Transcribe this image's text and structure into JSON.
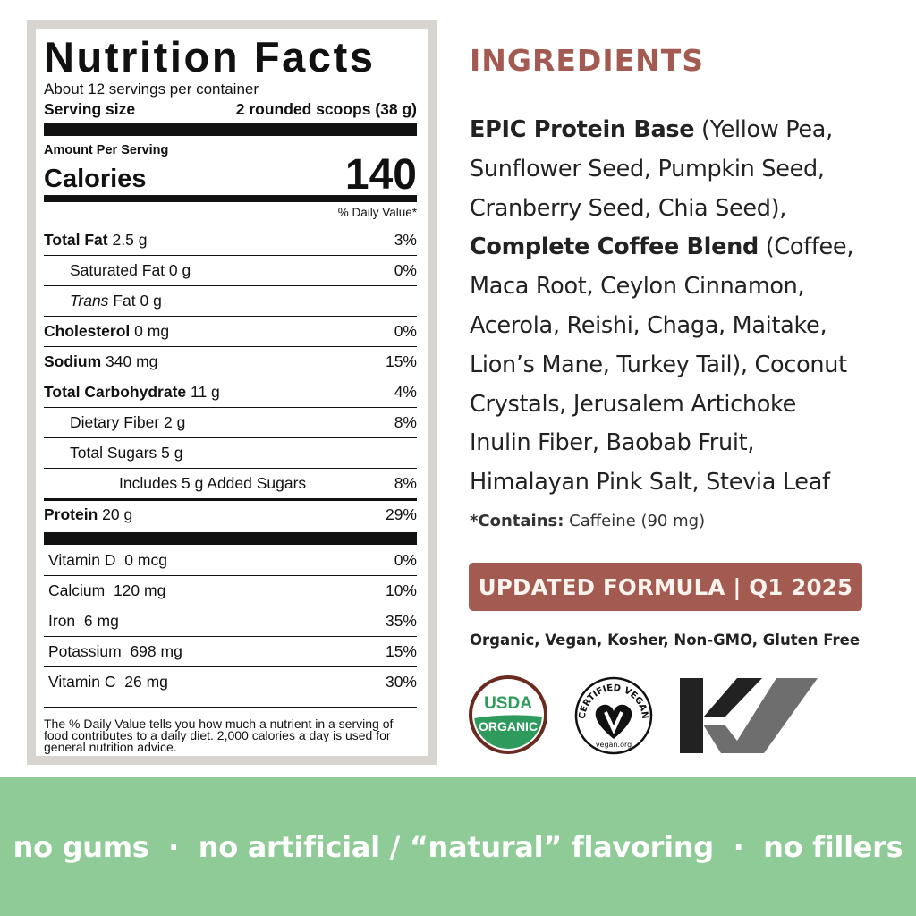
{
  "nutrition": {
    "title": "Nutrition Facts",
    "servings": "About 12 servings per container",
    "serving_size_label": "Serving size",
    "serving_size_value": "2 rounded scoops (38 g)",
    "amount_per_serving": "Amount Per Serving",
    "calories_label": "Calories",
    "calories_value": "140",
    "daily_value_header": "% Daily Value*",
    "rows": [
      {
        "name": "Total Fat",
        "amount": "2.5 g",
        "dv": "3%",
        "bold": true,
        "indent": 0
      },
      {
        "name": "Saturated Fat",
        "amount": "0 g",
        "dv": "0%",
        "bold": false,
        "indent": 1
      },
      {
        "name": "Trans",
        "name2": "Fat",
        "amount": "0 g",
        "dv": "",
        "bold": false,
        "indent": 1
      },
      {
        "name": "Cholesterol",
        "amount": "0 mg",
        "dv": "0%",
        "bold": true,
        "indent": 0
      },
      {
        "name": "Sodium",
        "amount": "340 mg",
        "dv": "15%",
        "bold": true,
        "indent": 0
      },
      {
        "name": "Total Carbohydrate",
        "amount": "11 g",
        "dv": "4%",
        "bold": true,
        "indent": 0
      },
      {
        "name": "Dietary Fiber",
        "amount": "2 g",
        "dv": "8%",
        "bold": false,
        "indent": 1
      },
      {
        "name": "Total Sugars",
        "amount": "5 g",
        "dv": "",
        "bold": false,
        "indent": 1
      },
      {
        "name": "Includes 5 g Added Sugars",
        "amount": "",
        "dv": "8%",
        "bold": false,
        "indent": 2
      },
      {
        "name": "Protein",
        "amount": "20 g",
        "dv": "29%",
        "bold": true,
        "indent": 0
      }
    ],
    "micros": [
      {
        "name": "Vitamin D",
        "amount": "0 mcg",
        "dv": "0%"
      },
      {
        "name": "Calcium",
        "amount": "120 mg",
        "dv": "10%"
      },
      {
        "name": "Iron",
        "amount": "6 mg",
        "dv": "35%"
      },
      {
        "name": "Potassium",
        "amount": "698 mg",
        "dv": "15%"
      },
      {
        "name": "Vitamin C",
        "amount": "26 mg",
        "dv": "30%"
      }
    ],
    "footnote": "The % Daily Value tells you how much a nutrient in a serving of food contributes to a daily diet. 2,000 calories a day is used for general nutrition advice."
  },
  "ingredients": {
    "heading": "INGREDIENTS",
    "lines": [
      [
        {
          "b": true,
          "t": "EPIC Protein Base"
        },
        {
          "b": false,
          "t": " (Yellow Pea,"
        }
      ],
      [
        {
          "b": false,
          "t": "Sunflower Seed, Pumpkin Seed,"
        }
      ],
      [
        {
          "b": false,
          "t": "Cranberry Seed, Chia Seed),"
        }
      ],
      [
        {
          "b": true,
          "t": "Complete Coffee Blend"
        },
        {
          "b": false,
          "t": " (Coffee,"
        }
      ],
      [
        {
          "b": false,
          "t": "Maca Root, Ceylon Cinnamon,"
        }
      ],
      [
        {
          "b": false,
          "t": "Acerola, Reishi, Chaga, Maitake,"
        }
      ],
      [
        {
          "b": false,
          "t": "Lion’s Mane, Turkey Tail), Coconut"
        }
      ],
      [
        {
          "b": false,
          "t": "Crystals, Jerusalem Artichoke"
        }
      ],
      [
        {
          "b": false,
          "t": "Inulin Fiber, Baobab Fruit,"
        }
      ],
      [
        {
          "b": false,
          "t": "Himalayan Pink Salt, Stevia Leaf"
        }
      ]
    ],
    "contains_label": "*Contains:",
    "contains_value": " Caffeine (90 mg)"
  },
  "banner": "UPDATED FORMULA | Q1 2025",
  "certifications": "Organic, Vegan, Kosher, Non-GMO, Gluten Free",
  "logos": {
    "usda_top": "USDA",
    "usda_bottom": "ORGANIC",
    "vegan_top": "CERTIFIED VEGAN",
    "vegan_bottom": "vegan.org",
    "kosher": "KV"
  },
  "footer": "no gums  ·  no artificial / “natural” flavoring  ·  no fillers",
  "colors": {
    "accent": "#a35a50",
    "footer_bg": "#8fcb97",
    "usda_green": "#2e9a5c",
    "usda_brown": "#6b2a1e",
    "label_border": "#d8d5d1"
  }
}
